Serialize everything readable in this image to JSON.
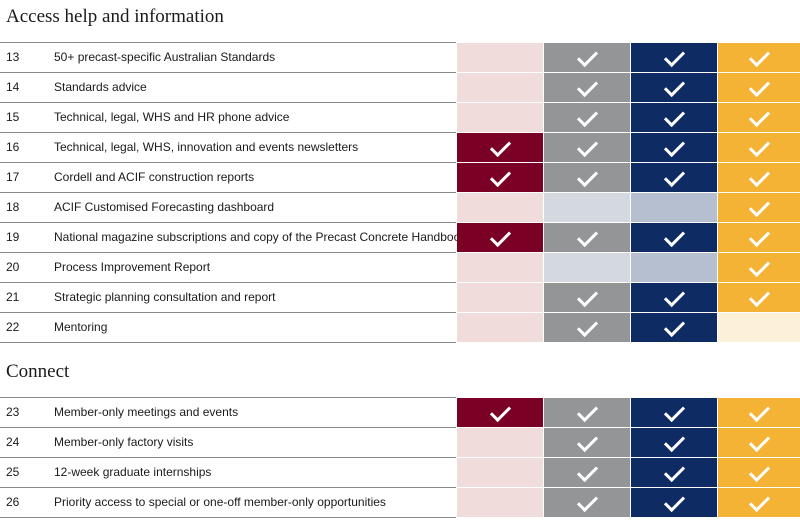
{
  "colors": {
    "tier1_full": "#7a0026",
    "tier1_light": "#f0dcda",
    "tier2_full": "#939597",
    "tier2_light": "#d3d9df",
    "tier3_full": "#0f2b63",
    "tier3_light": "#b6bfcf",
    "tier4_full": "#f5b335",
    "tier4_light": "#fdf0d8"
  },
  "sections": [
    {
      "title": "Access help and information",
      "rows": [
        {
          "num": "13",
          "label": "50+ precast-specific Australian Standards",
          "cells": [
            "light",
            "check",
            "check",
            "check"
          ]
        },
        {
          "num": "14",
          "label": "Standards advice",
          "cells": [
            "light",
            "check",
            "check",
            "check"
          ]
        },
        {
          "num": "15",
          "label": "Technical, legal, WHS and HR phone advice",
          "cells": [
            "light",
            "check",
            "check",
            "check"
          ]
        },
        {
          "num": "16",
          "label": "Technical, legal, WHS, innovation and events newsletters",
          "cells": [
            "check",
            "check",
            "check",
            "check"
          ]
        },
        {
          "num": "17",
          "label": "Cordell and ACIF construction reports",
          "cells": [
            "check",
            "check",
            "check",
            "check"
          ]
        },
        {
          "num": "18",
          "label": "ACIF Customised Forecasting dashboard",
          "cells": [
            "light",
            "light",
            "light",
            "check"
          ]
        },
        {
          "num": "19",
          "label": "National magazine subscriptions and copy of the Precast Concrete Handbook",
          "cells": [
            "check",
            "check",
            "check",
            "check"
          ]
        },
        {
          "num": "20",
          "label": "Process Improvement Report",
          "cells": [
            "light",
            "light",
            "light",
            "check"
          ]
        },
        {
          "num": "21",
          "label": "Strategic planning consultation and report",
          "cells": [
            "light",
            "check",
            "check",
            "check"
          ]
        },
        {
          "num": "22",
          "label": "Mentoring",
          "cells": [
            "light",
            "check",
            "check",
            "light"
          ]
        }
      ]
    },
    {
      "title": "Connect",
      "rows": [
        {
          "num": "23",
          "label": "Member-only meetings and events",
          "cells": [
            "check",
            "check",
            "check",
            "check"
          ]
        },
        {
          "num": "24",
          "label": "Member-only factory visits",
          "cells": [
            "light",
            "check",
            "check",
            "check"
          ]
        },
        {
          "num": "25",
          "label": "12-week graduate internships",
          "cells": [
            "light",
            "check",
            "check",
            "check"
          ]
        },
        {
          "num": "26",
          "label": "Priority access to special or one-off member-only opportunities",
          "cells": [
            "light",
            "check",
            "check",
            "check"
          ]
        }
      ]
    }
  ]
}
